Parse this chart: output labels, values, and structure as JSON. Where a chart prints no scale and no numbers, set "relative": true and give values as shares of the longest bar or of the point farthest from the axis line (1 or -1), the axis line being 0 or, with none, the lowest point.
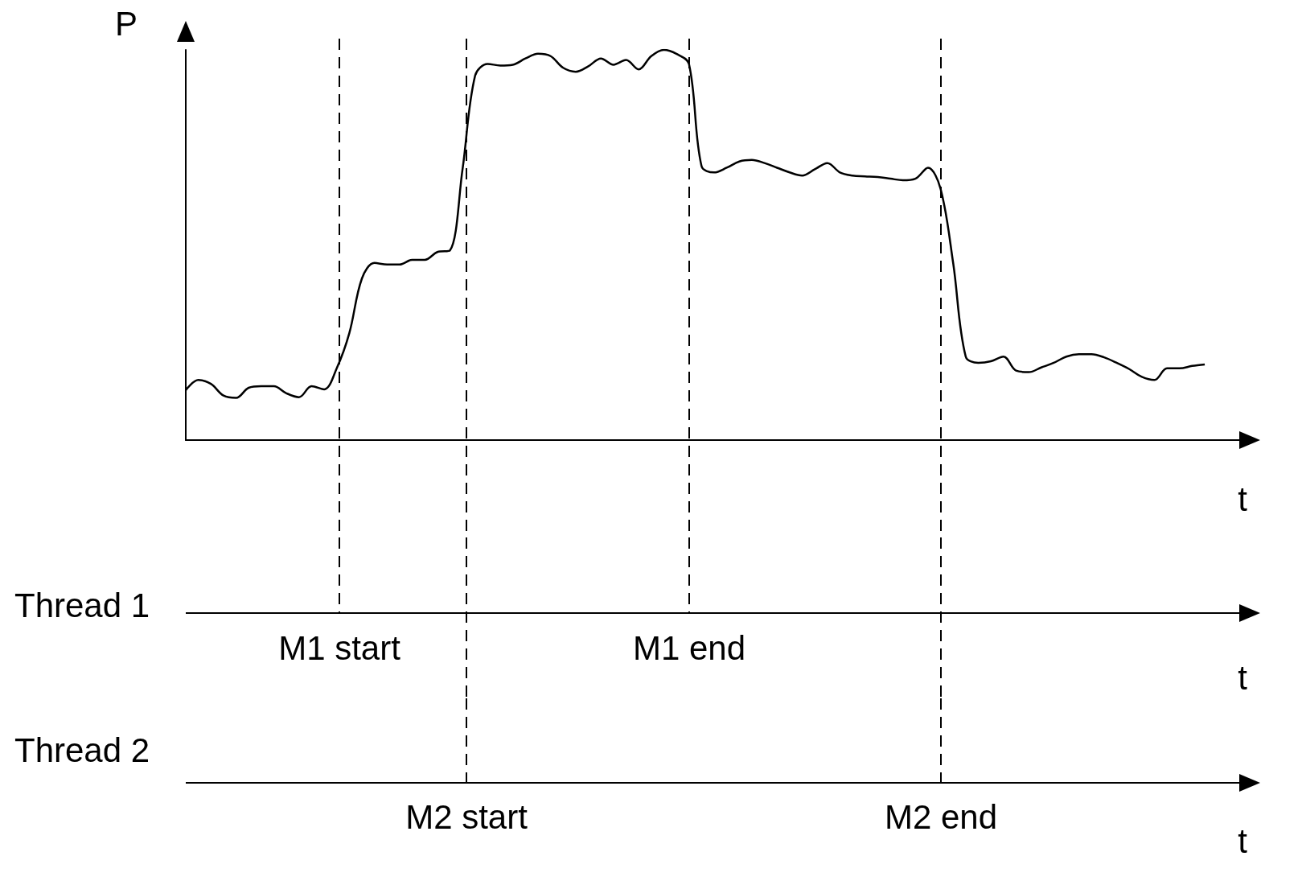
{
  "chart_data": [
    {
      "type": "line",
      "ylabel": "P",
      "xlabel": "t",
      "relative": true,
      "categories": [
        null,
        null,
        null,
        null,
        null,
        null,
        null,
        null,
        null,
        null,
        null,
        null,
        null,
        null,
        null,
        null,
        null,
        null,
        null,
        null,
        null,
        null,
        null,
        null,
        null,
        null,
        null,
        null,
        null,
        null,
        null,
        null,
        null,
        null,
        null,
        null,
        null,
        null,
        null,
        null,
        null,
        null,
        null,
        null,
        null,
        null,
        null,
        null,
        null,
        null,
        null,
        null,
        null,
        null,
        null,
        null,
        null,
        null,
        null,
        null,
        null,
        null,
        null,
        null,
        null,
        null,
        null,
        null,
        null,
        null,
        null,
        null,
        null,
        null,
        null,
        null,
        null,
        null,
        null,
        null,
        null,
        null,
        null,
        null,
        null
      ],
      "series": [
        {
          "color": "#000000",
          "values": [
            0.128,
            0.154,
            0.144,
            0.114,
            0.108,
            0.134,
            0.138,
            0.138,
            0.12,
            0.11,
            0.138,
            0.13,
            0.184,
            0.274,
            0.414,
            0.454,
            0.45,
            0.45,
            0.462,
            0.462,
            0.482,
            0.486,
            0.694,
            0.934,
            0.964,
            0.96,
            0.962,
            0.978,
            0.99,
            0.984,
            0.954,
            0.944,
            0.958,
            0.978,
            0.962,
            0.974,
            0.95,
            0.984,
            1,
            0.99,
            0.964,
            0.702,
            0.686,
            0.698,
            0.714,
            0.718,
            0.71,
            0.698,
            0.686,
            0.678,
            0.694,
            0.71,
            0.686,
            0.678,
            0.676,
            0.674,
            0.67,
            0.666,
            0.67,
            0.698,
            0.644,
            0.454,
            0.214,
            0.198,
            0.202,
            0.214,
            0.178,
            0.174,
            0.186,
            0.198,
            0.214,
            0.22,
            0.22,
            0.212,
            0.198,
            0.182,
            0.162,
            0.154,
            0.184,
            0.184,
            0.19,
            0.194,
            null,
            null,
            null
          ]
        }
      ]
    },
    {
      "type": "other",
      "title": "Thread 1",
      "xlabel": "t",
      "annotations": [
        "M1 start",
        "M1 end"
      ]
    },
    {
      "type": "other",
      "title": "Thread 2",
      "xlabel": "t",
      "annotations": [
        "M2 start",
        "M2 end"
      ]
    }
  ]
}
